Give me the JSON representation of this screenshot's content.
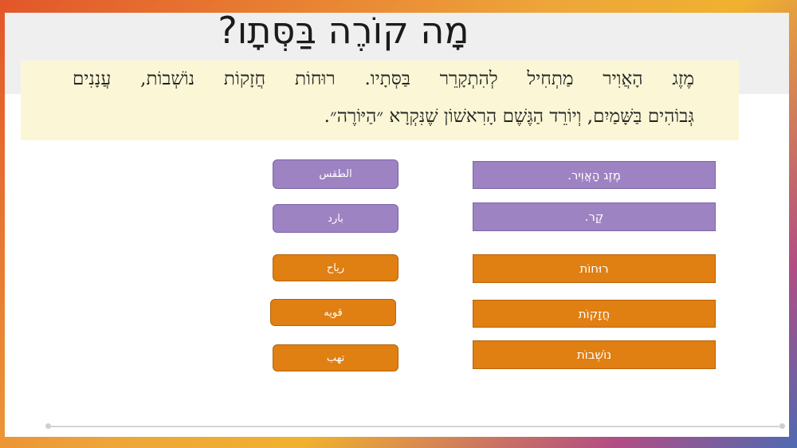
{
  "title": "מָה קוֹרֶה בַּסְּתָו?",
  "paragraph": {
    "line1": "מֶזֶג הָאֲוִיר מַתְחִיל לְהִתְקָרֵר בַּסְּתָיו. רוּחוֹת חֲזָקוֹת נוֹשְׁבוֹת, עֲנָנִים",
    "line2": "גְּבוֹהִים בַּשָּׁמַיִם, וְיוֹרֵד הַגֶּשֶׁם הָרִאשׁוֹן שֶׁנִּקְרָא ״הַיּוֹרֶה״."
  },
  "left_cards": [
    {
      "label": "الطقس",
      "color": "purple"
    },
    {
      "label": "بارد",
      "color": "purple"
    },
    {
      "label": "رياح",
      "color": "orange"
    },
    {
      "label": "قويه",
      "color": "orange"
    },
    {
      "label": "تهب",
      "color": "orange"
    }
  ],
  "right_cards": [
    {
      "label": "מֶזֶג הָאֲוִיר.",
      "color": "purple"
    },
    {
      "label": "קַר.",
      "color": "purple"
    },
    {
      "label": "רוּחוֹת",
      "color": "orange"
    },
    {
      "label": "חֲזָקוֹת",
      "color": "orange"
    },
    {
      "label": "נוֹשְׁבוֹת",
      "color": "orange"
    }
  ],
  "colors": {
    "purple": "#9e83c2",
    "orange": "#e07f12",
    "text_box": "#fbf7d6"
  }
}
